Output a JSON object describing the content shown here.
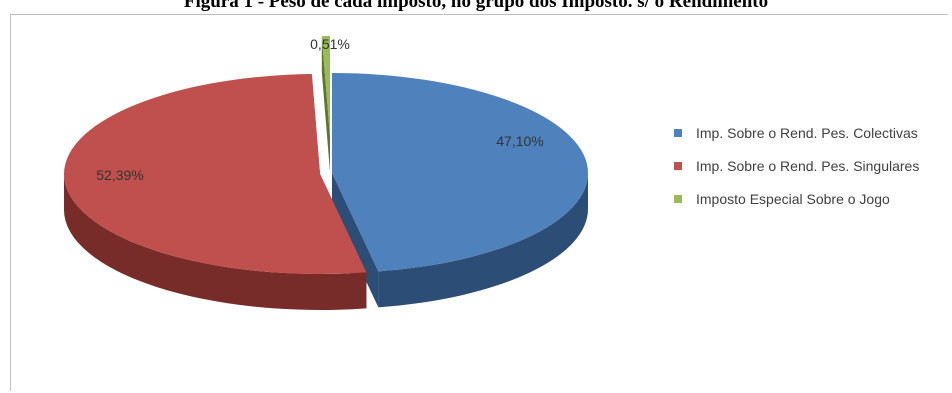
{
  "chart_data": {
    "type": "pie",
    "title": "Figura 1 - Peso de cada imposto, no grupo dos Imposto. s/ o Rendimento",
    "slices": [
      {
        "name": "Imp. Sobre o Rend. Pes. Colectivas",
        "value": 47.1,
        "label": "47,10%",
        "color": "#4f81bd",
        "side": "#2c4d75"
      },
      {
        "name": "Imp. Sobre o Rend. Pes. Singulares",
        "value": 52.39,
        "label": "52,39%",
        "color": "#c0504d",
        "side": "#772c2a"
      },
      {
        "name": "Imposto Especial Sobre o Jogo",
        "value": 0.51,
        "label": "0,51%",
        "color": "#9bbb59",
        "side": "#5f7530"
      }
    ],
    "exploded": true,
    "style": "3d",
    "legend_position": "right"
  }
}
